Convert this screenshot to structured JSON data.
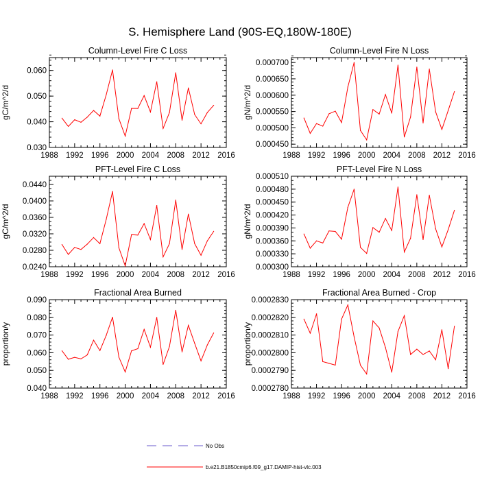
{
  "title": "S. Hemisphere Land (90S-EQ,180W-180E)",
  "colors": {
    "model": "#ff0000",
    "obs": "#6a5acd",
    "axis": "#000000"
  },
  "legend": [
    {
      "label": "No Obs",
      "style": "dashed",
      "color": "#6a5acd"
    },
    {
      "label": "b.e21.B1850cmip6.f09_g17.DAMIP-hist-vlc.003",
      "style": "solid",
      "color": "#ff0000"
    }
  ],
  "chart_data": [
    {
      "type": "line",
      "title": "Column-Level Fire C Loss",
      "ylabel": "gC/m^2/d",
      "xlim": [
        1988,
        2016
      ],
      "ylim": [
        0.03,
        0.065
      ],
      "xticks": [
        "1988",
        "1992",
        "1996",
        "2000",
        "2004",
        "2008",
        "2012",
        "2016"
      ],
      "yticks": [
        {
          "v": 0.03,
          "label": "0.030"
        },
        {
          "v": 0.04,
          "label": "0.040"
        },
        {
          "v": 0.05,
          "label": "0.050"
        },
        {
          "v": 0.06,
          "label": "0.060"
        }
      ],
      "minor_step": 0.002,
      "x": [
        1990,
        1991,
        1992,
        1993,
        1994,
        1995,
        1996,
        1997,
        1998,
        1999,
        2000,
        2001,
        2002,
        2003,
        2004,
        2005,
        2006,
        2007,
        2008,
        2009,
        2010,
        2011,
        2012,
        2013,
        2014
      ],
      "series": [
        {
          "name": "b.e21.B1850cmip6.f09_g17.DAMIP-hist-vlc.003",
          "values": [
            0.0414,
            0.0382,
            0.0408,
            0.0398,
            0.0418,
            0.0444,
            0.0422,
            0.0505,
            0.0602,
            0.0412,
            0.0344,
            0.0452,
            0.0452,
            0.0502,
            0.0438,
            0.0556,
            0.0374,
            0.0436,
            0.0591,
            0.0406,
            0.0532,
            0.0428,
            0.0392,
            0.0436,
            0.0464
          ]
        }
      ]
    },
    {
      "type": "line",
      "title": "Column-Level Fire N Loss",
      "ylabel": "gN/m^2/d",
      "xlim": [
        1988,
        2016
      ],
      "ylim": [
        0.00044,
        0.000715
      ],
      "xticks": [
        "1988",
        "1992",
        "1996",
        "2000",
        "2004",
        "2008",
        "2012",
        "2016"
      ],
      "yticks": [
        {
          "v": 0.00045,
          "label": "0.000450"
        },
        {
          "v": 0.0005,
          "label": "0.000500"
        },
        {
          "v": 0.00055,
          "label": "0.000550"
        },
        {
          "v": 0.0006,
          "label": "0.000600"
        },
        {
          "v": 0.00065,
          "label": "0.000650"
        },
        {
          "v": 0.0007,
          "label": "0.000700"
        }
      ],
      "minor_step": 1e-05,
      "x": [
        1990,
        1991,
        1992,
        1993,
        1994,
        1995,
        1996,
        1997,
        1998,
        1999,
        2000,
        2001,
        2002,
        2003,
        2004,
        2005,
        2006,
        2007,
        2008,
        2009,
        2010,
        2011,
        2012,
        2013,
        2014
      ],
      "series": [
        {
          "name": "b.e21.B1850cmip6.f09_g17.DAMIP-hist-vlc.003",
          "values": [
            0.00053,
            0.000483,
            0.000513,
            0.000505,
            0.000543,
            0.000551,
            0.000516,
            0.000625,
            0.0007,
            0.000492,
            0.000463,
            0.000556,
            0.000542,
            0.000602,
            0.000545,
            0.000692,
            0.000472,
            0.000533,
            0.000686,
            0.000515,
            0.00068,
            0.000549,
            0.000495,
            0.000553,
            0.000611
          ]
        }
      ]
    },
    {
      "type": "line",
      "title": "PFT-Level Fire C Loss",
      "ylabel": "gC/m^2/d",
      "xlim": [
        1988,
        2016
      ],
      "ylim": [
        0.024,
        0.046
      ],
      "xticks": [
        "1988",
        "1992",
        "1996",
        "2000",
        "2004",
        "2008",
        "2012",
        "2016"
      ],
      "yticks": [
        {
          "v": 0.024,
          "label": "0.0240"
        },
        {
          "v": 0.028,
          "label": "0.0280"
        },
        {
          "v": 0.032,
          "label": "0.0320"
        },
        {
          "v": 0.036,
          "label": "0.0360"
        },
        {
          "v": 0.04,
          "label": "0.0400"
        },
        {
          "v": 0.044,
          "label": "0.0440"
        }
      ],
      "minor_step": 0.001,
      "x": [
        1990,
        1991,
        1992,
        1993,
        1994,
        1995,
        1996,
        1997,
        1998,
        1999,
        2000,
        2001,
        2002,
        2003,
        2004,
        2005,
        2006,
        2007,
        2008,
        2009,
        2010,
        2011,
        2012,
        2013,
        2014
      ],
      "series": [
        {
          "name": "b.e21.B1850cmip6.f09_g17.DAMIP-hist-vlc.003",
          "values": [
            0.0294,
            0.027,
            0.0287,
            0.0282,
            0.0295,
            0.0311,
            0.0296,
            0.0355,
            0.0423,
            0.0286,
            0.0242,
            0.0318,
            0.0317,
            0.0345,
            0.0306,
            0.0389,
            0.0264,
            0.0296,
            0.0402,
            0.0282,
            0.0368,
            0.0296,
            0.0268,
            0.0303,
            0.0326
          ]
        }
      ]
    },
    {
      "type": "line",
      "title": "PFT-Level Fire N Loss",
      "ylabel": "gN/m^2/d",
      "xlim": [
        1988,
        2016
      ],
      "ylim": [
        0.0003,
        0.00051
      ],
      "xticks": [
        "1988",
        "1992",
        "1996",
        "2000",
        "2004",
        "2008",
        "2012",
        "2016"
      ],
      "yticks": [
        {
          "v": 0.0003,
          "label": "0.000300"
        },
        {
          "v": 0.00033,
          "label": "0.000330"
        },
        {
          "v": 0.00036,
          "label": "0.000360"
        },
        {
          "v": 0.00039,
          "label": "0.000390"
        },
        {
          "v": 0.00042,
          "label": "0.000420"
        },
        {
          "v": 0.00045,
          "label": "0.000450"
        },
        {
          "v": 0.00048,
          "label": "0.000480"
        },
        {
          "v": 0.00051,
          "label": "0.000510"
        }
      ],
      "minor_step": 1e-05,
      "x": [
        1990,
        1991,
        1992,
        1993,
        1994,
        1995,
        1996,
        1997,
        1998,
        1999,
        2000,
        2001,
        2002,
        2003,
        2004,
        2005,
        2006,
        2007,
        2008,
        2009,
        2010,
        2011,
        2012,
        2013,
        2014
      ],
      "series": [
        {
          "name": "b.e21.B1850cmip6.f09_g17.DAMIP-hist-vlc.003",
          "values": [
            0.000376,
            0.000343,
            0.00036,
            0.000355,
            0.000383,
            0.000382,
            0.000364,
            0.000438,
            0.00048,
            0.000345,
            0.000331,
            0.000391,
            0.00038,
            0.000412,
            0.000384,
            0.000485,
            0.000334,
            0.000366,
            0.000467,
            0.000363,
            0.000466,
            0.000388,
            0.000346,
            0.000386,
            0.000431
          ]
        }
      ]
    },
    {
      "type": "line",
      "title": "Fractional Area Burned",
      "ylabel": "proportion/y",
      "xlim": [
        1988,
        2016
      ],
      "ylim": [
        0.04,
        0.09
      ],
      "xticks": [
        "1988",
        "1992",
        "1996",
        "2000",
        "2004",
        "2008",
        "2012",
        "2016"
      ],
      "yticks": [
        {
          "v": 0.04,
          "label": "0.040"
        },
        {
          "v": 0.05,
          "label": "0.050"
        },
        {
          "v": 0.06,
          "label": "0.060"
        },
        {
          "v": 0.07,
          "label": "0.070"
        },
        {
          "v": 0.08,
          "label": "0.080"
        },
        {
          "v": 0.09,
          "label": "0.090"
        }
      ],
      "minor_step": 0.002,
      "x": [
        1990,
        1991,
        1992,
        1993,
        1994,
        1995,
        1996,
        1997,
        1998,
        1999,
        2000,
        2001,
        2002,
        2003,
        2004,
        2005,
        2006,
        2007,
        2008,
        2009,
        2010,
        2011,
        2012,
        2013,
        2014
      ],
      "series": [
        {
          "name": "b.e21.B1850cmip6.f09_g17.DAMIP-hist-vlc.003",
          "values": [
            0.0611,
            0.0563,
            0.0574,
            0.0565,
            0.0588,
            0.0671,
            0.0612,
            0.0698,
            0.0801,
            0.0575,
            0.0491,
            0.0611,
            0.0623,
            0.0732,
            0.0631,
            0.08,
            0.0534,
            0.0635,
            0.084,
            0.0605,
            0.0755,
            0.0653,
            0.0554,
            0.0644,
            0.0712
          ]
        }
      ]
    },
    {
      "type": "line",
      "title": "Fractional Area Burned - Crop",
      "ylabel": "proportion/y",
      "xlim": [
        1988,
        2016
      ],
      "ylim": [
        0.000278,
        0.000283
      ],
      "xticks": [
        "1988",
        "1992",
        "1996",
        "2000",
        "2004",
        "2008",
        "2012",
        "2016"
      ],
      "yticks": [
        {
          "v": 0.000278,
          "label": "0.0002780"
        },
        {
          "v": 0.000279,
          "label": "0.0002790"
        },
        {
          "v": 0.00028,
          "label": "0.0002800"
        },
        {
          "v": 0.000281,
          "label": "0.0002810"
        },
        {
          "v": 0.000282,
          "label": "0.0002820"
        },
        {
          "v": 0.000283,
          "label": "0.0002830"
        }
      ],
      "minor_step": 2e-07,
      "x": [
        1990,
        1991,
        1992,
        1993,
        1994,
        1995,
        1996,
        1997,
        1998,
        1999,
        2000,
        2001,
        2002,
        2003,
        2004,
        2005,
        2006,
        2007,
        2008,
        2009,
        2010,
        2011,
        2012,
        2013,
        2014
      ],
      "series": [
        {
          "name": "b.e21.B1850cmip6.f09_g17.DAMIP-hist-vlc.003",
          "values": [
            0.0002819,
            0.0002811,
            0.0002822,
            0.0002795,
            0.0002794,
            0.0002793,
            0.0002819,
            0.0002827,
            0.0002809,
            0.0002793,
            0.0002788,
            0.0002818,
            0.0002814,
            0.0002803,
            0.0002789,
            0.0002812,
            0.0002821,
            0.0002799,
            0.0002802,
            0.0002799,
            0.0002801,
            0.0002796,
            0.0002813,
            0.0002791,
            0.0002815
          ]
        }
      ]
    }
  ]
}
